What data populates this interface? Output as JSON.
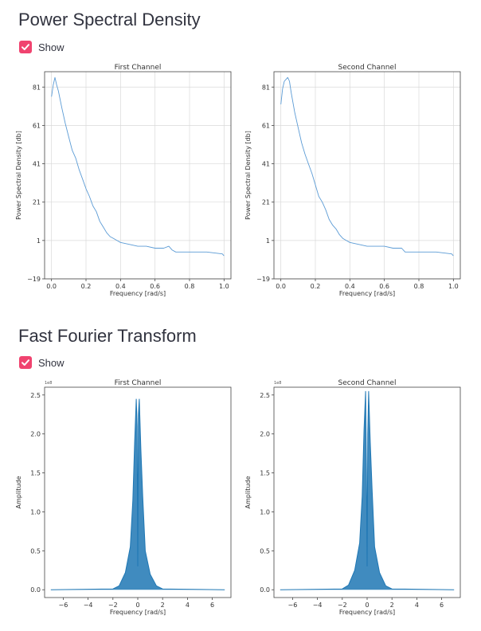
{
  "sections": [
    {
      "title": "Power Spectral Density",
      "checkbox_label": "Show",
      "checked": true
    },
    {
      "title": "Fast Fourier Transform",
      "checkbox_label": "Show",
      "checked": true
    }
  ],
  "icons": {
    "checkbox": "checkmark-icon"
  },
  "colors": {
    "accent": "#f0436f",
    "series": "#1f77b4",
    "psd_line": "#5b9bd5"
  },
  "chart_data": [
    {
      "type": "line",
      "title": "First Channel",
      "xlabel": "Frequency [rad/s]",
      "ylabel": "Power Spectral Density [db]",
      "xlim": [
        -0.04,
        1.04
      ],
      "ylim": [
        -19,
        89
      ],
      "xticks": [
        0.0,
        0.2,
        0.4,
        0.6,
        0.8,
        1.0
      ],
      "xtick_labels": [
        "0.0",
        "0.2",
        "0.4",
        "0.6",
        "0.8",
        "1.0"
      ],
      "yticks": [
        -19,
        1,
        21,
        41,
        61,
        81
      ],
      "ytick_labels": [
        "−19",
        "1",
        "21",
        "41",
        "61",
        "81"
      ],
      "grid": true,
      "x": [
        0.0,
        0.01,
        0.02,
        0.03,
        0.04,
        0.06,
        0.08,
        0.1,
        0.12,
        0.14,
        0.16,
        0.18,
        0.2,
        0.22,
        0.24,
        0.26,
        0.28,
        0.3,
        0.32,
        0.34,
        0.36,
        0.38,
        0.4,
        0.45,
        0.5,
        0.55,
        0.6,
        0.65,
        0.68,
        0.7,
        0.72,
        0.8,
        0.9,
        0.99,
        1.0
      ],
      "y": [
        76,
        82,
        86,
        82,
        79,
        70,
        62,
        55,
        48,
        44,
        38,
        33,
        28,
        24,
        19,
        16,
        11,
        8,
        5,
        3,
        2,
        1,
        0,
        -1,
        -2,
        -2,
        -3,
        -3,
        -2,
        -4,
        -5,
        -5,
        -5,
        -6,
        -7
      ]
    },
    {
      "type": "line",
      "title": "Second Channel",
      "xlabel": "Frequency [rad/s]",
      "ylabel": "Power Spectral Density [db]",
      "xlim": [
        -0.04,
        1.04
      ],
      "ylim": [
        -19,
        89
      ],
      "xticks": [
        0.0,
        0.2,
        0.4,
        0.6,
        0.8,
        1.0
      ],
      "xtick_labels": [
        "0.0",
        "0.2",
        "0.4",
        "0.6",
        "0.8",
        "1.0"
      ],
      "yticks": [
        -19,
        1,
        21,
        41,
        61,
        81
      ],
      "ytick_labels": [
        "−19",
        "1",
        "21",
        "41",
        "61",
        "81"
      ],
      "grid": true,
      "x": [
        0.0,
        0.01,
        0.02,
        0.03,
        0.04,
        0.05,
        0.06,
        0.08,
        0.1,
        0.12,
        0.14,
        0.16,
        0.18,
        0.2,
        0.22,
        0.24,
        0.26,
        0.28,
        0.3,
        0.32,
        0.34,
        0.36,
        0.38,
        0.4,
        0.45,
        0.5,
        0.55,
        0.6,
        0.65,
        0.7,
        0.72,
        0.8,
        0.9,
        0.99,
        1.0
      ],
      "y": [
        72,
        80,
        84,
        85,
        86,
        84,
        78,
        68,
        60,
        52,
        46,
        41,
        36,
        30,
        24,
        21,
        17,
        12,
        9,
        7,
        4,
        2,
        1,
        0,
        -1,
        -2,
        -2,
        -2,
        -3,
        -3,
        -5,
        -5,
        -5,
        -6,
        -7
      ]
    },
    {
      "type": "line",
      "title": "First Channel",
      "xlabel": "Frequency [rad/s]",
      "ylabel": "Amplitude",
      "offset_label": "1e8",
      "xlim": [
        -7.5,
        7.5
      ],
      "ylim": [
        -0.1,
        2.6
      ],
      "xticks": [
        -6,
        -4,
        -2,
        0,
        2,
        4,
        6
      ],
      "xtick_labels": [
        "−6",
        "−4",
        "−2",
        "0",
        "2",
        "4",
        "6"
      ],
      "yticks": [
        0.0,
        0.5,
        1.0,
        1.5,
        2.0,
        2.5
      ],
      "ytick_labels": [
        "0.0",
        "0.5",
        "1.0",
        "1.5",
        "2.0",
        "2.5"
      ],
      "grid": false,
      "x": [
        -7.0,
        -2.0,
        -1.5,
        -1.0,
        -0.6,
        -0.4,
        -0.25,
        -0.12,
        -0.05,
        0.0,
        0.05,
        0.12,
        0.25,
        0.4,
        0.6,
        1.0,
        1.5,
        2.0,
        7.0
      ],
      "y": [
        0.0,
        0.01,
        0.05,
        0.22,
        0.55,
        1.15,
        1.9,
        2.45,
        2.1,
        0.3,
        2.25,
        2.45,
        1.8,
        1.2,
        0.5,
        0.2,
        0.05,
        0.01,
        0.0
      ]
    },
    {
      "type": "line",
      "title": "Second Channel",
      "xlabel": "Frequency [rad/s]",
      "ylabel": "Amplitude",
      "offset_label": "1e8",
      "xlim": [
        -7.5,
        7.5
      ],
      "ylim": [
        -0.1,
        2.6
      ],
      "xticks": [
        -6,
        -4,
        -2,
        0,
        2,
        4,
        6
      ],
      "xtick_labels": [
        "−6",
        "−4",
        "−2",
        "0",
        "2",
        "4",
        "6"
      ],
      "yticks": [
        0.0,
        0.5,
        1.0,
        1.5,
        2.0,
        2.5
      ],
      "ytick_labels": [
        "0.0",
        "0.5",
        "1.0",
        "1.5",
        "2.0",
        "2.5"
      ],
      "grid": false,
      "x": [
        -7.0,
        -2.0,
        -1.5,
        -1.0,
        -0.6,
        -0.4,
        -0.25,
        -0.12,
        -0.05,
        0.0,
        0.05,
        0.12,
        0.25,
        0.4,
        0.6,
        1.0,
        1.5,
        2.0,
        7.0
      ],
      "y": [
        0.0,
        0.01,
        0.06,
        0.25,
        0.6,
        1.2,
        2.05,
        2.55,
        1.5,
        0.3,
        2.0,
        2.55,
        1.9,
        1.3,
        0.55,
        0.22,
        0.05,
        0.01,
        0.0
      ]
    }
  ]
}
